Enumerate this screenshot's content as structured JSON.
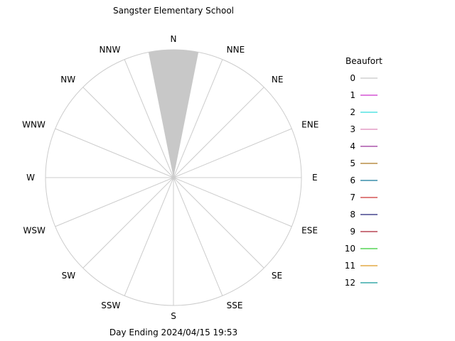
{
  "chart_data": {
    "type": "windrose",
    "title": "Sangster Elementary School",
    "subtitle": "Day Ending 2024/04/15 19:53",
    "directions": [
      "N",
      "NNE",
      "NE",
      "ENE",
      "E",
      "ESE",
      "SE",
      "SSE",
      "S",
      "SSW",
      "SW",
      "WSW",
      "W",
      "WNW",
      "NW",
      "NNW"
    ],
    "legend": {
      "title": "Beaufort",
      "placement": "right",
      "entries": [
        {
          "label": "0",
          "color": "#c8c8c8"
        },
        {
          "label": "1",
          "color": "#cc33cc"
        },
        {
          "label": "2",
          "color": "#33dddd"
        },
        {
          "label": "3",
          "color": "#dd88bb"
        },
        {
          "label": "4",
          "color": "#993399"
        },
        {
          "label": "5",
          "color": "#aa7722"
        },
        {
          "label": "6",
          "color": "#117799"
        },
        {
          "label": "7",
          "color": "#cc3333"
        },
        {
          "label": "8",
          "color": "#222277"
        },
        {
          "label": "9",
          "color": "#aa2233"
        },
        {
          "label": "10",
          "color": "#33cc33"
        },
        {
          "label": "11",
          "color": "#dd9922"
        },
        {
          "label": "12",
          "color": "#119999"
        }
      ]
    },
    "series": [
      {
        "beaufort": "0",
        "color": "#c8c8c8",
        "direction": "N",
        "fraction_of_radius": 1.0
      }
    ],
    "grid": true
  }
}
